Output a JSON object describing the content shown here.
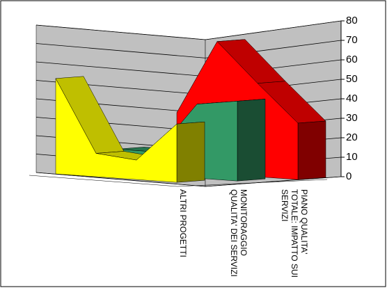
{
  "chart_data": {
    "type": "area3d",
    "categories": [
      null,
      null,
      null,
      null
    ],
    "series": [
      {
        "name": "ALTRI PROGETTI",
        "color": "#ffff00",
        "values": [
          49,
          12,
          10,
          30
        ]
      },
      {
        "name": "MONITORAGGIO QUALITA' DEI SERVIZI",
        "color": "#339966",
        "values": [
          12,
          12,
          38,
          41
        ]
      },
      {
        "name": "PIANO QUALITA' TOTALE: IMPATTO SUI SERVIZI",
        "color": "#ff0000",
        "values": [
          30,
          68,
          48,
          29
        ]
      }
    ],
    "ylim": [
      0,
      80
    ],
    "yticks": [
      0,
      10,
      20,
      30,
      40,
      50,
      60,
      70,
      80
    ],
    "grid": true
  }
}
